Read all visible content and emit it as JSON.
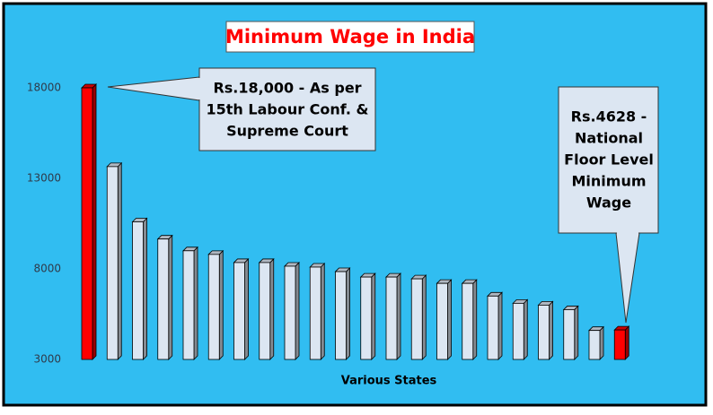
{
  "chart_data": {
    "type": "bar",
    "title": "Minimum Wage in India",
    "x_label": "Various States",
    "categories": [
      null,
      null,
      null,
      null,
      null,
      null,
      null,
      null,
      null,
      null,
      null,
      null,
      null,
      null,
      null,
      null,
      null,
      null,
      null,
      null,
      null,
      null
    ],
    "values": [
      18000,
      13650,
      10600,
      9650,
      9000,
      8800,
      8350,
      8350,
      8150,
      8100,
      7850,
      7550,
      7550,
      7450,
      7200,
      7200,
      6500,
      6100,
      6000,
      5750,
      4600,
      4628
    ],
    "colors": [
      "#ff0000",
      "#dce6f2",
      "#dce6f2",
      "#dce6f2",
      "#dce6f2",
      "#dce6f2",
      "#dce6f2",
      "#dce6f2",
      "#dce6f2",
      "#dce6f2",
      "#dce6f2",
      "#dce6f2",
      "#dce6f2",
      "#dce6f2",
      "#dce6f2",
      "#dce6f2",
      "#dce6f2",
      "#dce6f2",
      "#dce6f2",
      "#dce6f2",
      "#dce6f2",
      "#ff0000"
    ],
    "ylim": [
      3000,
      18000
    ],
    "yticks": [
      3000,
      8000,
      13000,
      18000
    ],
    "grid": false,
    "annotations": [
      {
        "lines": [
          "Rs.18,000 - As per",
          "15th Labour Conf. &",
          "Supreme Court"
        ]
      },
      {
        "lines": [
          "Rs.4628 -",
          "National",
          "Floor Level",
          "Minimum",
          "Wage"
        ]
      }
    ]
  }
}
